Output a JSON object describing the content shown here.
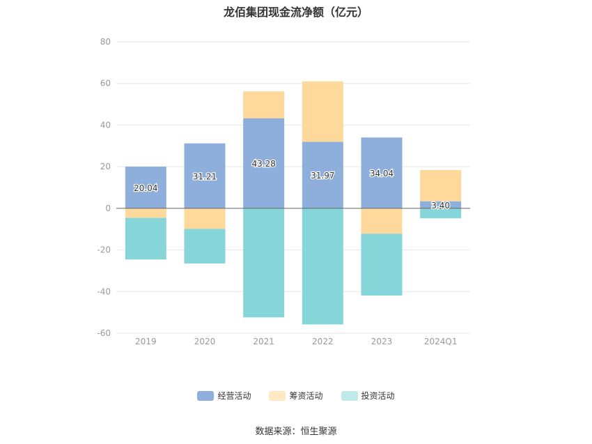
{
  "title": "龙佰集团现金流净额（亿元）",
  "source": "数据来源：恒生聚源",
  "chart_data": {
    "type": "bar",
    "stacked": true,
    "categories": [
      "2019",
      "2020",
      "2021",
      "2022",
      "2023",
      "2024Q1"
    ],
    "series": [
      {
        "name": "经营活动",
        "color": "#8eaedc",
        "values": [
          20.04,
          31.21,
          43.28,
          31.97,
          34.04,
          3.4
        ],
        "labels": [
          "20.04",
          "31.21",
          "43.28",
          "31.97",
          "34.04",
          "3.40"
        ]
      },
      {
        "name": "筹资活动",
        "color": "#ffd99b",
        "values": [
          -4.6,
          -9.9,
          12.9,
          29.0,
          -12.2,
          15.0
        ]
      },
      {
        "name": "投资活动",
        "color": "#86d5d8",
        "values": [
          -20.0,
          -16.6,
          -52.4,
          -55.8,
          -29.7,
          -4.8
        ]
      }
    ],
    "yticks": [
      80,
      60,
      40,
      20,
      0,
      -20,
      -40,
      -60
    ],
    "ytick_labels": [
      "80",
      "60",
      "40",
      "20",
      "0",
      "-20",
      "-40",
      "-60"
    ],
    "ylim": [
      -60,
      80
    ],
    "grid": true,
    "legend_position": "bottom"
  }
}
